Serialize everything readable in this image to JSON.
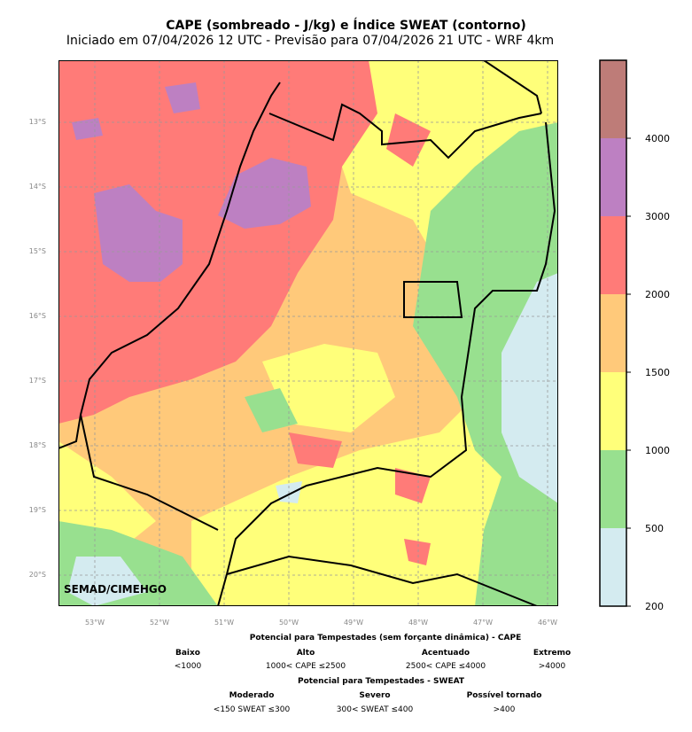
{
  "title": "CAPE (sombreado - J/kg) e Índice SWEAT (contorno)",
  "subtitle": "Iniciado em 07/04/2026 12 UTC - Previsão para 07/04/2026 21 UTC - WRF 4km",
  "credit": "SEMAD/CIMEHGO",
  "lat_labels": [
    "13°S",
    "14°S",
    "15°S",
    "16°S",
    "17°S",
    "18°S",
    "19°S",
    "20°S"
  ],
  "lon_labels": [
    "53°W",
    "52°W",
    "51°W",
    "50°W",
    "49°W",
    "48°W",
    "47°W",
    "46°W"
  ],
  "colorbar": {
    "ticks": [
      "200",
      "500",
      "1000",
      "1500",
      "2000",
      "3000",
      "4000"
    ],
    "colors": [
      "#d4ebf0",
      "#98e08f",
      "#ffff7a",
      "#ffc97a",
      "#ff7b78",
      "#bd80c2",
      "#be7c78"
    ]
  },
  "legend": {
    "cape_title": "Potencial para Tempestades (sem forçante dinâmica) - CAPE",
    "cape": [
      {
        "name": "Baixo",
        "range": "<1000"
      },
      {
        "name": "Alto",
        "range": "1000< CAPE ≤2500"
      },
      {
        "name": "Acentuado",
        "range": "2500< CAPE ≤4000"
      },
      {
        "name": "Extremo",
        "range": ">4000"
      }
    ],
    "sweat_title": "Potencial para Tempestades - SWEAT",
    "sweat": [
      {
        "name": "Moderado",
        "range": "<150 SWEAT ≤300"
      },
      {
        "name": "Severo",
        "range": "300< SWEAT ≤400"
      },
      {
        "name": "Possível tornado",
        "range": ">400"
      }
    ]
  }
}
